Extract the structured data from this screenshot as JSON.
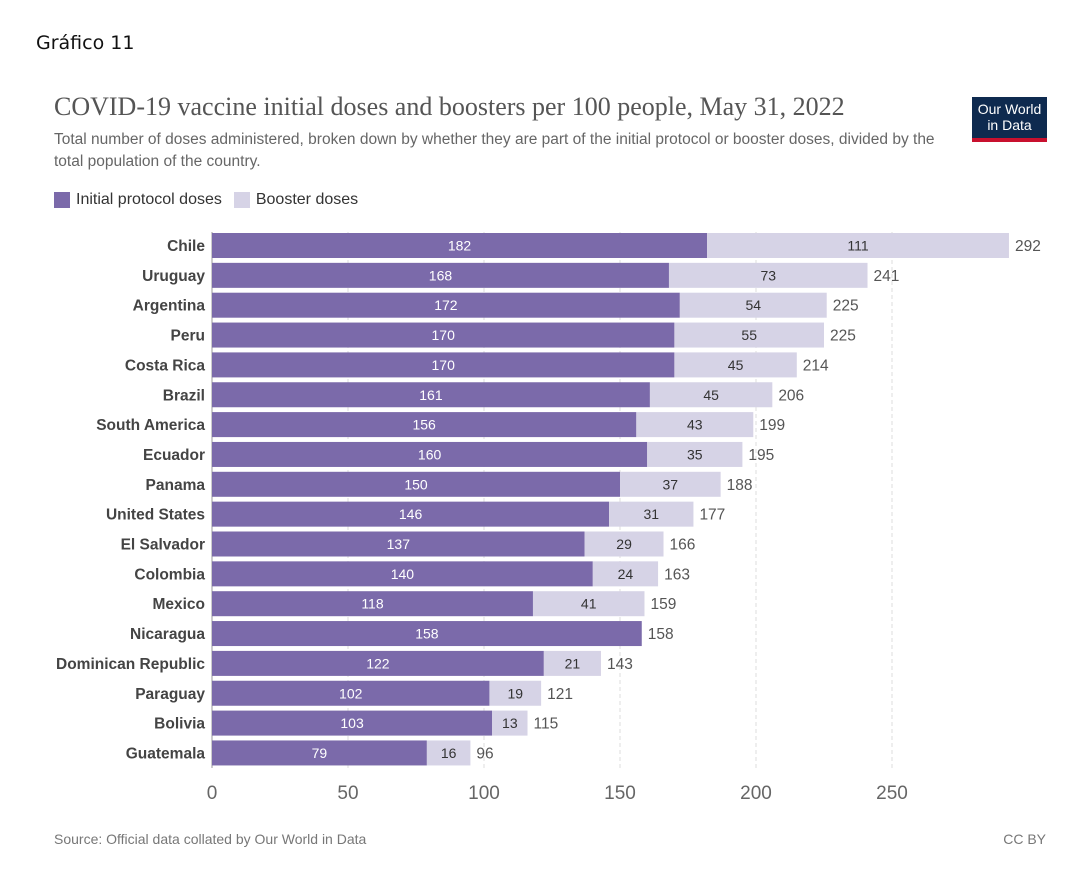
{
  "page": {
    "caption": "Gráfico 11",
    "title": "COVID-19 vaccine initial doses and boosters per 100 people, May 31, 2022",
    "subtitle": "Total number of doses administered, broken down by whether they are part of the initial protocol or booster doses, divided by the total population of the country.",
    "logo_line1": "Our World",
    "logo_line2": "in Data",
    "source": "Source: Official data collated by Our World in Data",
    "license": "CC BY"
  },
  "colors": {
    "initial": "#7b6aaa",
    "booster": "#d6d3e6",
    "grid": "#dddddd",
    "label_dark": "#333333",
    "label_light": "#ffffff",
    "total_text": "#555555"
  },
  "chart_data": {
    "type": "bar",
    "orientation": "horizontal",
    "stacked": true,
    "categories": [
      "Chile",
      "Uruguay",
      "Argentina",
      "Peru",
      "Costa Rica",
      "Brazil",
      "South America",
      "Ecuador",
      "Panama",
      "United States",
      "El Salvador",
      "Colombia",
      "Mexico",
      "Nicaragua",
      "Dominican Republic",
      "Paraguay",
      "Bolivia",
      "Guatemala"
    ],
    "series": [
      {
        "name": "Initial protocol doses",
        "values": [
          182,
          168,
          172,
          170,
          170,
          161,
          156,
          160,
          150,
          146,
          137,
          140,
          118,
          158,
          122,
          102,
          103,
          79
        ]
      },
      {
        "name": "Booster doses",
        "values": [
          111,
          73,
          54,
          55,
          45,
          45,
          43,
          35,
          37,
          31,
          29,
          24,
          41,
          0,
          21,
          19,
          13,
          16
        ]
      }
    ],
    "totals": [
      292,
      241,
      225,
      225,
      214,
      206,
      199,
      195,
      188,
      177,
      166,
      163,
      159,
      158,
      143,
      121,
      115,
      96
    ],
    "xticks": [
      0,
      50,
      100,
      150,
      200,
      250
    ],
    "xlim": [
      0,
      292
    ],
    "grid": true,
    "legend": "top-left"
  }
}
